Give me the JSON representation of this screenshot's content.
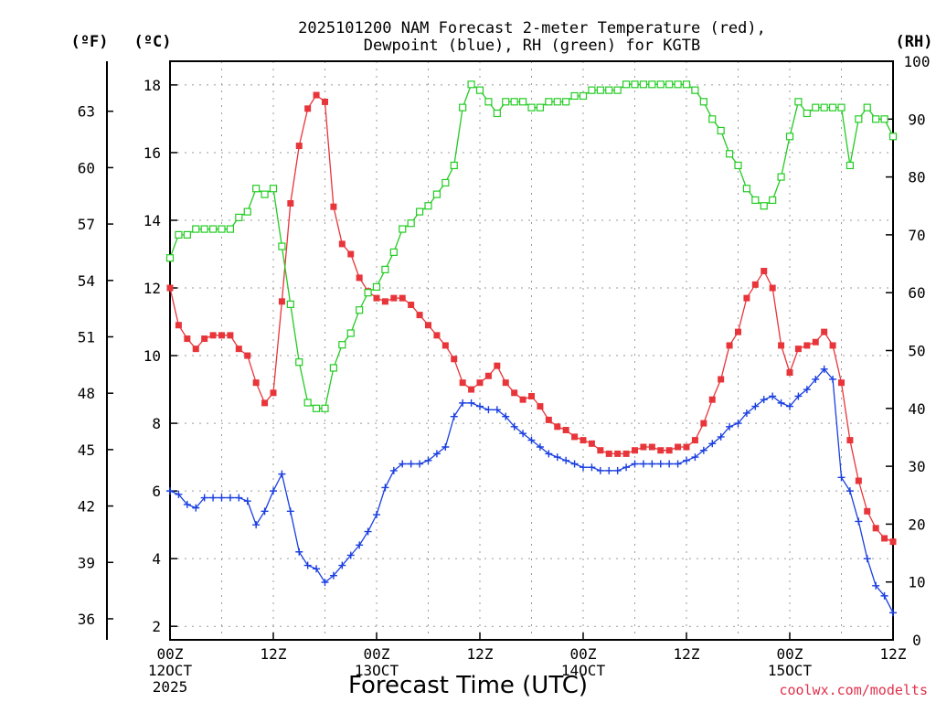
{
  "chart_data": {
    "type": "line",
    "title_lines": [
      "2025101200 NAM Forecast 2-meter Temperature (red),",
      "Dewpoint (blue), RH (green) for KGTB"
    ],
    "xlabel": "Forecast Time (UTC)",
    "credit": "coolwx.com/modelts",
    "units": {
      "fahrenheit": "(ºF)",
      "celsius": "(ºC)",
      "rh": "(RH)"
    },
    "x_range_hours": [
      0,
      84
    ],
    "celsius_axis": {
      "min": 1.6,
      "max": 18.7,
      "ticks": [
        2,
        4,
        6,
        8,
        10,
        12,
        14,
        16,
        18
      ]
    },
    "fahrenheit_ticks": [
      36,
      39,
      42,
      45,
      48,
      51,
      54,
      57,
      60,
      63
    ],
    "rh_axis": {
      "min": 0,
      "max": 100,
      "ticks": [
        0,
        10,
        20,
        30,
        40,
        50,
        60,
        70,
        80,
        90,
        100
      ]
    },
    "x_ticks": [
      {
        "hour": 0,
        "lines": [
          "00Z",
          "12OCT",
          "2025"
        ]
      },
      {
        "hour": 12,
        "lines": [
          "12Z"
        ]
      },
      {
        "hour": 24,
        "lines": [
          "00Z",
          "13OCT"
        ]
      },
      {
        "hour": 36,
        "lines": [
          "12Z"
        ]
      },
      {
        "hour": 48,
        "lines": [
          "00Z",
          "14OCT"
        ]
      },
      {
        "hour": 60,
        "lines": [
          "12Z"
        ]
      },
      {
        "hour": 72,
        "lines": [
          "00Z",
          "15OCT"
        ]
      },
      {
        "hour": 84,
        "lines": [
          "12Z"
        ]
      }
    ],
    "series": [
      {
        "name": "Temperature",
        "axis": "celsius",
        "color": "#e8353a",
        "marker": "filled-square",
        "x": [
          0,
          1,
          2,
          3,
          4,
          5,
          6,
          7,
          8,
          9,
          10,
          11,
          12,
          13,
          14,
          15,
          16,
          17,
          18,
          19,
          20,
          21,
          22,
          23,
          24,
          25,
          26,
          27,
          28,
          29,
          30,
          31,
          32,
          33,
          34,
          35,
          36,
          37,
          38,
          39,
          40,
          41,
          42,
          43,
          44,
          45,
          46,
          47,
          48,
          49,
          50,
          51,
          52,
          53,
          54,
          55,
          56,
          57,
          58,
          59,
          60,
          61,
          62,
          63,
          64,
          65,
          66,
          67,
          68,
          69,
          70,
          71,
          72,
          73,
          74,
          75,
          76,
          77,
          78,
          79,
          80,
          81,
          82,
          83,
          84
        ],
        "values": [
          12.0,
          10.9,
          10.5,
          10.2,
          10.5,
          10.6,
          10.6,
          10.6,
          10.2,
          10.0,
          9.2,
          8.6,
          8.9,
          11.6,
          14.5,
          16.2,
          17.3,
          17.7,
          17.5,
          14.4,
          13.3,
          13.0,
          12.3,
          11.9,
          11.7,
          11.6,
          11.7,
          11.7,
          11.5,
          11.2,
          10.9,
          10.6,
          10.3,
          9.9,
          9.2,
          9.0,
          9.2,
          9.4,
          9.7,
          9.2,
          8.9,
          8.7,
          8.8,
          8.5,
          8.1,
          7.9,
          7.8,
          7.6,
          7.5,
          7.4,
          7.2,
          7.1,
          7.1,
          7.1,
          7.2,
          7.3,
          7.3,
          7.2,
          7.2,
          7.3,
          7.3,
          7.5,
          8.0,
          8.7,
          9.3,
          10.3,
          10.7,
          11.7,
          12.1,
          12.5,
          12.0,
          10.3,
          9.5,
          10.2,
          10.3,
          10.4,
          10.7,
          10.3,
          9.2,
          7.5,
          6.3,
          5.4,
          4.9,
          4.6,
          4.5
        ]
      },
      {
        "name": "Dewpoint",
        "axis": "celsius",
        "color": "#1a3fe0",
        "marker": "plus",
        "x": [
          0,
          1,
          2,
          3,
          4,
          5,
          6,
          7,
          8,
          9,
          10,
          11,
          12,
          13,
          14,
          15,
          16,
          17,
          18,
          19,
          20,
          21,
          22,
          23,
          24,
          25,
          26,
          27,
          28,
          29,
          30,
          31,
          32,
          33,
          34,
          35,
          36,
          37,
          38,
          39,
          40,
          41,
          42,
          43,
          44,
          45,
          46,
          47,
          48,
          49,
          50,
          51,
          52,
          53,
          54,
          55,
          56,
          57,
          58,
          59,
          60,
          61,
          62,
          63,
          64,
          65,
          66,
          67,
          68,
          69,
          70,
          71,
          72,
          73,
          74,
          75,
          76,
          77,
          78,
          79,
          80,
          81,
          82,
          83,
          84
        ],
        "values": [
          6.0,
          5.9,
          5.6,
          5.5,
          5.8,
          5.8,
          5.8,
          5.8,
          5.8,
          5.7,
          5.0,
          5.4,
          6.0,
          6.5,
          5.4,
          4.2,
          3.8,
          3.7,
          3.3,
          3.5,
          3.8,
          4.1,
          4.4,
          4.8,
          5.3,
          6.1,
          6.6,
          6.8,
          6.8,
          6.8,
          6.9,
          7.1,
          7.3,
          8.2,
          8.6,
          8.6,
          8.5,
          8.4,
          8.4,
          8.2,
          7.9,
          7.7,
          7.5,
          7.3,
          7.1,
          7.0,
          6.9,
          6.8,
          6.7,
          6.7,
          6.6,
          6.6,
          6.6,
          6.7,
          6.8,
          6.8,
          6.8,
          6.8,
          6.8,
          6.8,
          6.9,
          7.0,
          7.2,
          7.4,
          7.6,
          7.9,
          8.0,
          8.3,
          8.5,
          8.7,
          8.8,
          8.6,
          8.5,
          8.8,
          9.0,
          9.3,
          9.6,
          9.3,
          6.4,
          6.0,
          5.1,
          4.0,
          3.2,
          2.9,
          2.4
        ]
      },
      {
        "name": "RH",
        "axis": "rh",
        "color": "#22cc22",
        "marker": "open-square",
        "x": [
          0,
          1,
          2,
          3,
          4,
          5,
          6,
          7,
          8,
          9,
          10,
          11,
          12,
          13,
          14,
          15,
          16,
          17,
          18,
          19,
          20,
          21,
          22,
          23,
          24,
          25,
          26,
          27,
          28,
          29,
          30,
          31,
          32,
          33,
          34,
          35,
          36,
          37,
          38,
          39,
          40,
          41,
          42,
          43,
          44,
          45,
          46,
          47,
          48,
          49,
          50,
          51,
          52,
          53,
          54,
          55,
          56,
          57,
          58,
          59,
          60,
          61,
          62,
          63,
          64,
          65,
          66,
          67,
          68,
          69,
          70,
          71,
          72,
          73,
          74,
          75,
          76,
          77,
          78,
          79,
          80,
          81,
          82,
          83,
          84
        ],
        "values": [
          66,
          70,
          70,
          71,
          71,
          71,
          71,
          71,
          73,
          74,
          78,
          77,
          78,
          68,
          58,
          48,
          41,
          40,
          40,
          47,
          51,
          53,
          57,
          60,
          61,
          64,
          67,
          71,
          72,
          74,
          75,
          77,
          79,
          82,
          92,
          96,
          95,
          93,
          91,
          93,
          93,
          93,
          92,
          92,
          93,
          93,
          93,
          94,
          94,
          95,
          95,
          95,
          95,
          96,
          96,
          96,
          96,
          96,
          96,
          96,
          96,
          95,
          93,
          90,
          88,
          84,
          82,
          78,
          76,
          75,
          76,
          80,
          87,
          93,
          91,
          92,
          92,
          92,
          92,
          82,
          90,
          92,
          90,
          90,
          87
        ]
      }
    ]
  }
}
